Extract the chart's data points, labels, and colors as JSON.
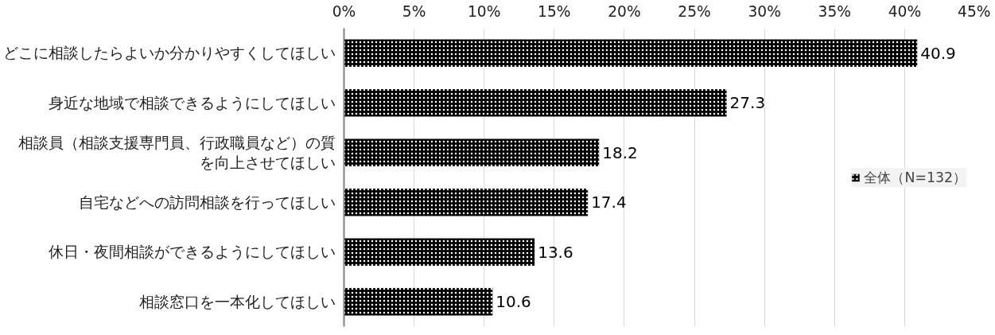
{
  "chart_data": {
    "type": "bar",
    "orientation": "horizontal",
    "categories": [
      "どこに相談したらよいか分かりやすくしてほしい",
      "身近な地域で相談できるようにしてほしい",
      "相談員（相談支援専門員、行政職員など）の質を向上させてほしい",
      "自宅などへの訪問相談を行ってほしい",
      "休日・夜間相談ができるようにしてほしい",
      "相談窓口を一本化してほしい"
    ],
    "series": [
      {
        "name": "全体（N=132）",
        "color": "#000000",
        "values": [
          40.9,
          27.3,
          18.2,
          17.4,
          13.6,
          10.6
        ]
      }
    ],
    "xlim": [
      0,
      45
    ],
    "xticks": [
      {
        "value": 0,
        "label": "0%"
      },
      {
        "value": 5,
        "label": "5%"
      },
      {
        "value": 10,
        "label": "10%"
      },
      {
        "value": 15,
        "label": "15%"
      },
      {
        "value": 20,
        "label": "20%"
      },
      {
        "value": 25,
        "label": "25%"
      },
      {
        "value": 30,
        "label": "30%"
      },
      {
        "value": 35,
        "label": "35%"
      },
      {
        "value": 40,
        "label": "40%"
      },
      {
        "value": 45,
        "label": "45%"
      }
    ],
    "grid": "x",
    "legend": "right",
    "data_labels": true
  }
}
